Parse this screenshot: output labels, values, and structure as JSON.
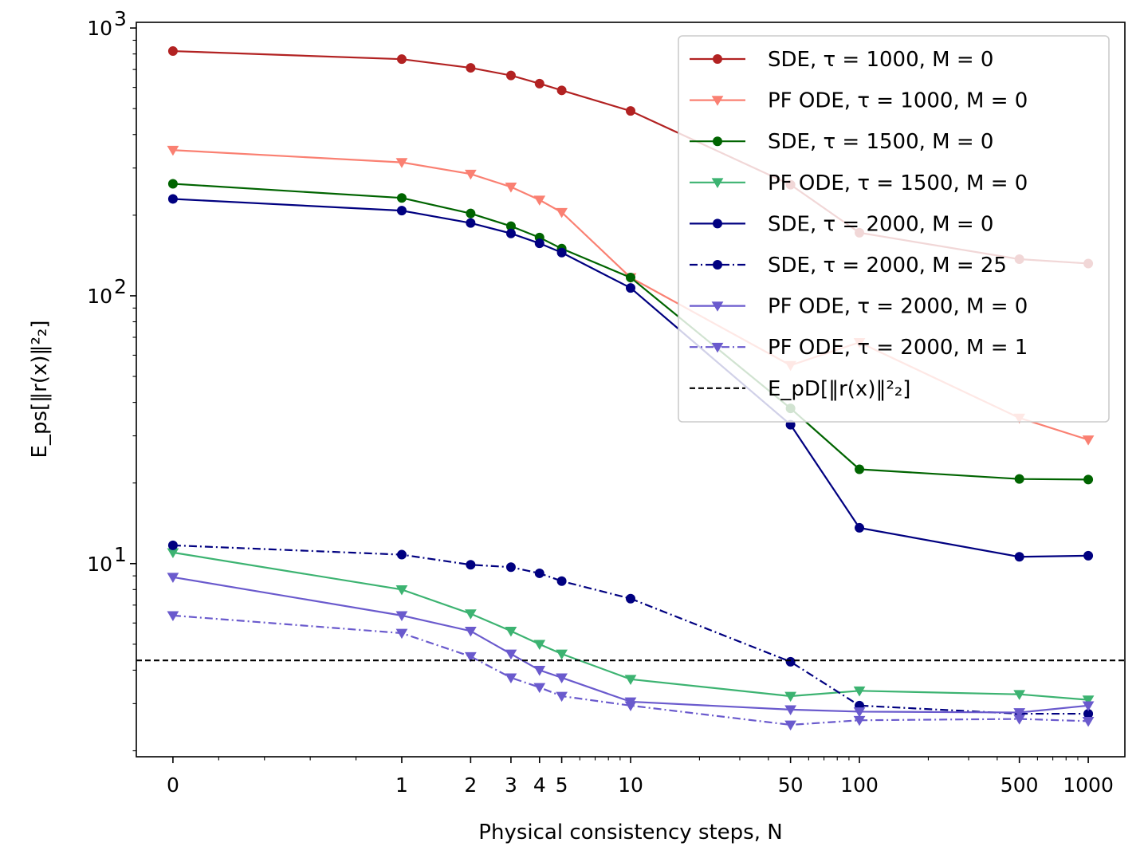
{
  "chart_data": {
    "type": "line",
    "title": "",
    "xlabel": "Physical consistency steps, N",
    "ylabel": "E_ps[‖r(x)‖²₂]",
    "xscale": "symlog",
    "yscale": "log",
    "ylim": [
      1.9,
      1050
    ],
    "x_ticks": [
      0,
      1,
      2,
      3,
      4,
      5,
      10,
      50,
      100,
      500,
      1000
    ],
    "x_tick_labels": [
      "0",
      "1",
      "2",
      "3",
      "4",
      "5",
      "10",
      "50",
      "100",
      "500",
      "1000"
    ],
    "y_tick_labels": [
      "10",
      "10",
      "10"
    ],
    "y_tick_exponents": [
      "1",
      "2",
      "3"
    ],
    "y_major": [
      10,
      100,
      1000
    ],
    "grid": false,
    "legend_position": "upper right",
    "reference_line": {
      "label": "E_pD[‖r(x)‖²₂]",
      "value": 4.35,
      "color": "#000000",
      "style": "dashed"
    },
    "series": [
      {
        "name": "SDE, τ = 1000, M = 0",
        "color": "#b22222",
        "marker": "circle",
        "style": "solid",
        "x": [
          0,
          1,
          2,
          3,
          4,
          5,
          10,
          50,
          100,
          500,
          1000
        ],
        "values": [
          820,
          765,
          710,
          665,
          620,
          585,
          490,
          260,
          172,
          137,
          132
        ]
      },
      {
        "name": "PF ODE, τ = 1000, M = 0",
        "color": "#fa8072",
        "marker": "triangle-down",
        "style": "solid",
        "x": [
          0,
          1,
          2,
          3,
          4,
          5,
          10,
          50,
          100,
          500,
          1000
        ],
        "values": [
          350,
          315,
          285,
          255,
          228,
          205,
          117,
          55,
          67,
          35,
          29
        ]
      },
      {
        "name": "SDE, τ = 1500, M = 0",
        "color": "#006400",
        "marker": "circle",
        "style": "solid",
        "x": [
          0,
          1,
          2,
          3,
          4,
          5,
          10,
          50,
          100,
          500,
          1000
        ],
        "values": [
          262,
          232,
          203,
          182,
          165,
          150,
          117,
          38,
          22.5,
          20.7,
          20.6
        ]
      },
      {
        "name": "PF ODE, τ = 1500, M = 0",
        "color": "#3cb371",
        "marker": "triangle-down",
        "style": "solid",
        "x": [
          0,
          1,
          2,
          3,
          4,
          5,
          10,
          50,
          100,
          500,
          1000
        ],
        "values": [
          11.0,
          8.0,
          6.5,
          5.6,
          5.0,
          4.6,
          3.7,
          3.2,
          3.35,
          3.25,
          3.1
        ]
      },
      {
        "name": "SDE, τ = 2000, M = 0",
        "color": "#000080",
        "marker": "circle",
        "style": "solid",
        "x": [
          0,
          1,
          2,
          3,
          4,
          5,
          10,
          50,
          100,
          500,
          1000
        ],
        "values": [
          230,
          208,
          187,
          171,
          157,
          145,
          107,
          33,
          13.6,
          10.6,
          10.7
        ]
      },
      {
        "name": "SDE, τ = 2000, M = 25",
        "color": "#000080",
        "marker": "circle",
        "style": "dashdot",
        "x": [
          0,
          1,
          2,
          3,
          4,
          5,
          10,
          50,
          100,
          500,
          1000
        ],
        "values": [
          11.7,
          10.8,
          9.9,
          9.7,
          9.2,
          8.6,
          7.4,
          4.3,
          2.95,
          2.75,
          2.75
        ]
      },
      {
        "name": "PF ODE, τ = 2000, M = 0",
        "color": "#6a5acd",
        "marker": "triangle-down",
        "style": "solid",
        "x": [
          0,
          1,
          2,
          3,
          4,
          5,
          10,
          50,
          100,
          500,
          1000
        ],
        "values": [
          8.9,
          6.4,
          5.6,
          4.6,
          4.0,
          3.75,
          3.05,
          2.85,
          2.8,
          2.78,
          2.95
        ]
      },
      {
        "name": "PF ODE, τ = 2000, M = 1",
        "color": "#6a5acd",
        "marker": "triangle-down",
        "style": "dashdot",
        "x": [
          0,
          1,
          2,
          3,
          4,
          5,
          10,
          50,
          100,
          500,
          1000
        ],
        "values": [
          6.4,
          5.5,
          4.5,
          3.75,
          3.45,
          3.2,
          2.95,
          2.5,
          2.6,
          2.63,
          2.58
        ]
      }
    ]
  }
}
